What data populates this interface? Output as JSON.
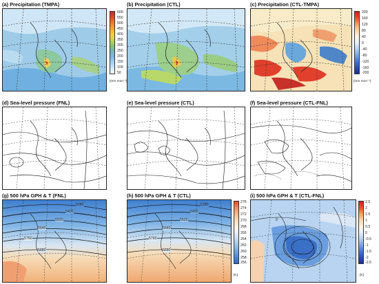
{
  "panels": [
    {
      "title": "(a) Precipitation (TMPA)"
    },
    {
      "title": "(b) Precipitation (CTL)"
    },
    {
      "title": "(c) Precipitation (CTL-TMPA)"
    },
    {
      "title": "(d) Sea-level pressure (FNL)"
    },
    {
      "title": "(e) Sea-level pressure (CTL)"
    },
    {
      "title": "(f) Sea-level pressure (CTL-FNL)"
    },
    {
      "title": "(g) 500 hPa GPH & T (FNL)"
    },
    {
      "title": "(h) 500 hPa GPH & T (CTL)"
    },
    {
      "title": "(i) 500 hPa GPH & T (CTL-FNL)"
    }
  ],
  "colorbars": {
    "precip": {
      "ticks": [
        "600",
        "550",
        "500",
        "450",
        "400",
        "350",
        "300",
        "250",
        "200",
        "150",
        "100",
        "50"
      ],
      "unit": "[mm mon⁻¹]"
    },
    "precip_diff": {
      "ticks": [
        "200",
        "160",
        "120",
        "80",
        "40",
        "0",
        "-40",
        "-80",
        "-120",
        "-160",
        "-200"
      ],
      "unit": "[mm mon⁻¹]"
    },
    "temp": {
      "ticks": [
        "276",
        "274",
        "272",
        "270",
        "268",
        "266",
        "264",
        "262",
        "260",
        "258",
        "256"
      ],
      "unit": "[K]"
    },
    "temp_diff": {
      "ticks": [
        "2.5",
        "2",
        "1.5",
        "1",
        "0.5",
        "0",
        "-0.5",
        "-1",
        "-1.5",
        "-2",
        "-2.5"
      ],
      "unit": "[K]"
    }
  },
  "contour_labels": {
    "g": [
      "5880",
      "5760",
      "5640",
      "5520",
      "5400",
      "5280"
    ],
    "h": [
      "5880",
      "5760",
      "5640",
      "5520",
      "5400",
      "5280"
    ],
    "i": [
      "0"
    ]
  }
}
